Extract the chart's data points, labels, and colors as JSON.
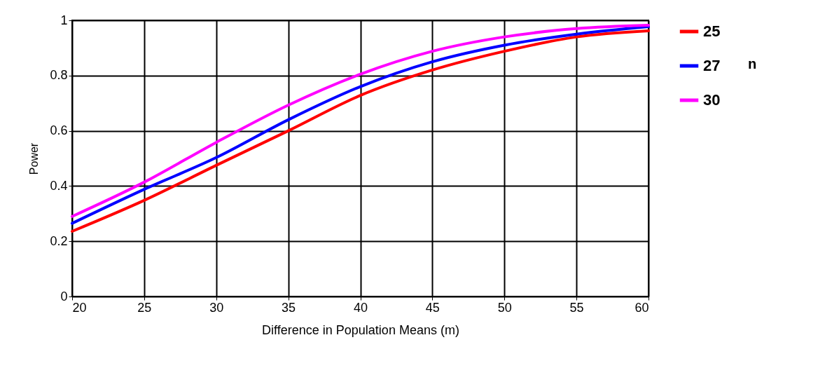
{
  "chart_data": {
    "type": "line",
    "xlabel": "Difference in Population Means (m)",
    "ylabel": "Power",
    "legend_title": "n",
    "x": [
      20,
      25,
      30,
      35,
      40,
      45,
      50,
      55,
      60
    ],
    "series": [
      {
        "name": "25",
        "color": "#ff0000",
        "values": [
          0.236,
          0.348,
          0.475,
          0.6,
          0.728,
          0.82,
          0.888,
          0.94,
          0.962
        ]
      },
      {
        "name": "27",
        "color": "#0000ff",
        "values": [
          0.265,
          0.388,
          0.503,
          0.64,
          0.76,
          0.85,
          0.91,
          0.95,
          0.977
        ]
      },
      {
        "name": "30",
        "color": "#ff00ff",
        "values": [
          0.29,
          0.414,
          0.558,
          0.693,
          0.805,
          0.888,
          0.94,
          0.97,
          0.982
        ]
      }
    ],
    "xlim": [
      20,
      60
    ],
    "xticks": [
      20,
      25,
      30,
      35,
      40,
      45,
      50,
      55,
      60
    ],
    "ylim": [
      0,
      1
    ],
    "yticks": [
      0,
      0.2,
      0.4,
      0.6,
      0.8,
      1
    ],
    "grid": true,
    "legend": "right",
    "marker": "none",
    "line_style": "solid"
  }
}
